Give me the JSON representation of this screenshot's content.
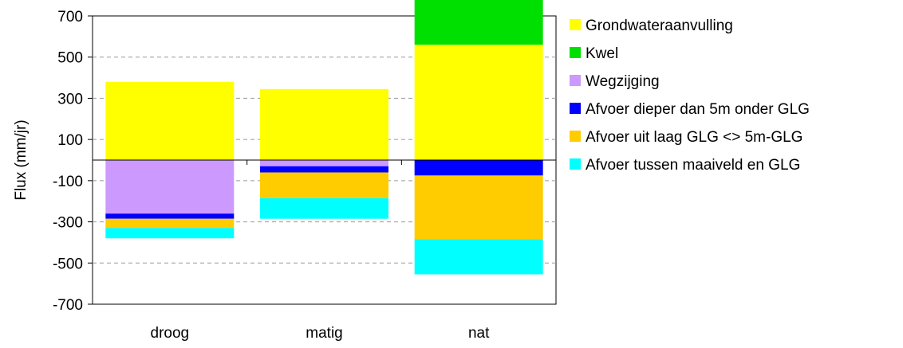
{
  "chart_data": {
    "type": "bar",
    "stacked": true,
    "title": "",
    "xlabel": "",
    "ylabel": "Flux (mm/jr)",
    "ylim": [
      -700,
      700
    ],
    "yticks": [
      700,
      500,
      300,
      100,
      -100,
      -300,
      -500,
      -700
    ],
    "grid": "horizontal-dashed",
    "legend": "right",
    "categories": [
      "droog",
      "matig",
      "nat"
    ],
    "series": [
      {
        "name": "Grondwateraanvulling",
        "color": "#ffff00",
        "values": [
          380,
          345,
          560
        ]
      },
      {
        "name": "Kwel",
        "color": "#00e000",
        "values": [
          0,
          0,
          225
        ]
      },
      {
        "name": "Wegzijging",
        "color": "#cc99ff",
        "values": [
          -260,
          -30,
          0
        ]
      },
      {
        "name": "Afvoer dieper dan 5m onder GLG",
        "color": "#0000ff",
        "values": [
          -25,
          -30,
          -75
        ]
      },
      {
        "name": "Afvoer uit laag GLG <> 5m-GLG",
        "color": "#ffcc00",
        "values": [
          -45,
          -125,
          -310
        ]
      },
      {
        "name": "Afvoer tussen maaiveld en GLG",
        "color": "#00ffff",
        "values": [
          -50,
          -100,
          -170
        ]
      }
    ]
  }
}
